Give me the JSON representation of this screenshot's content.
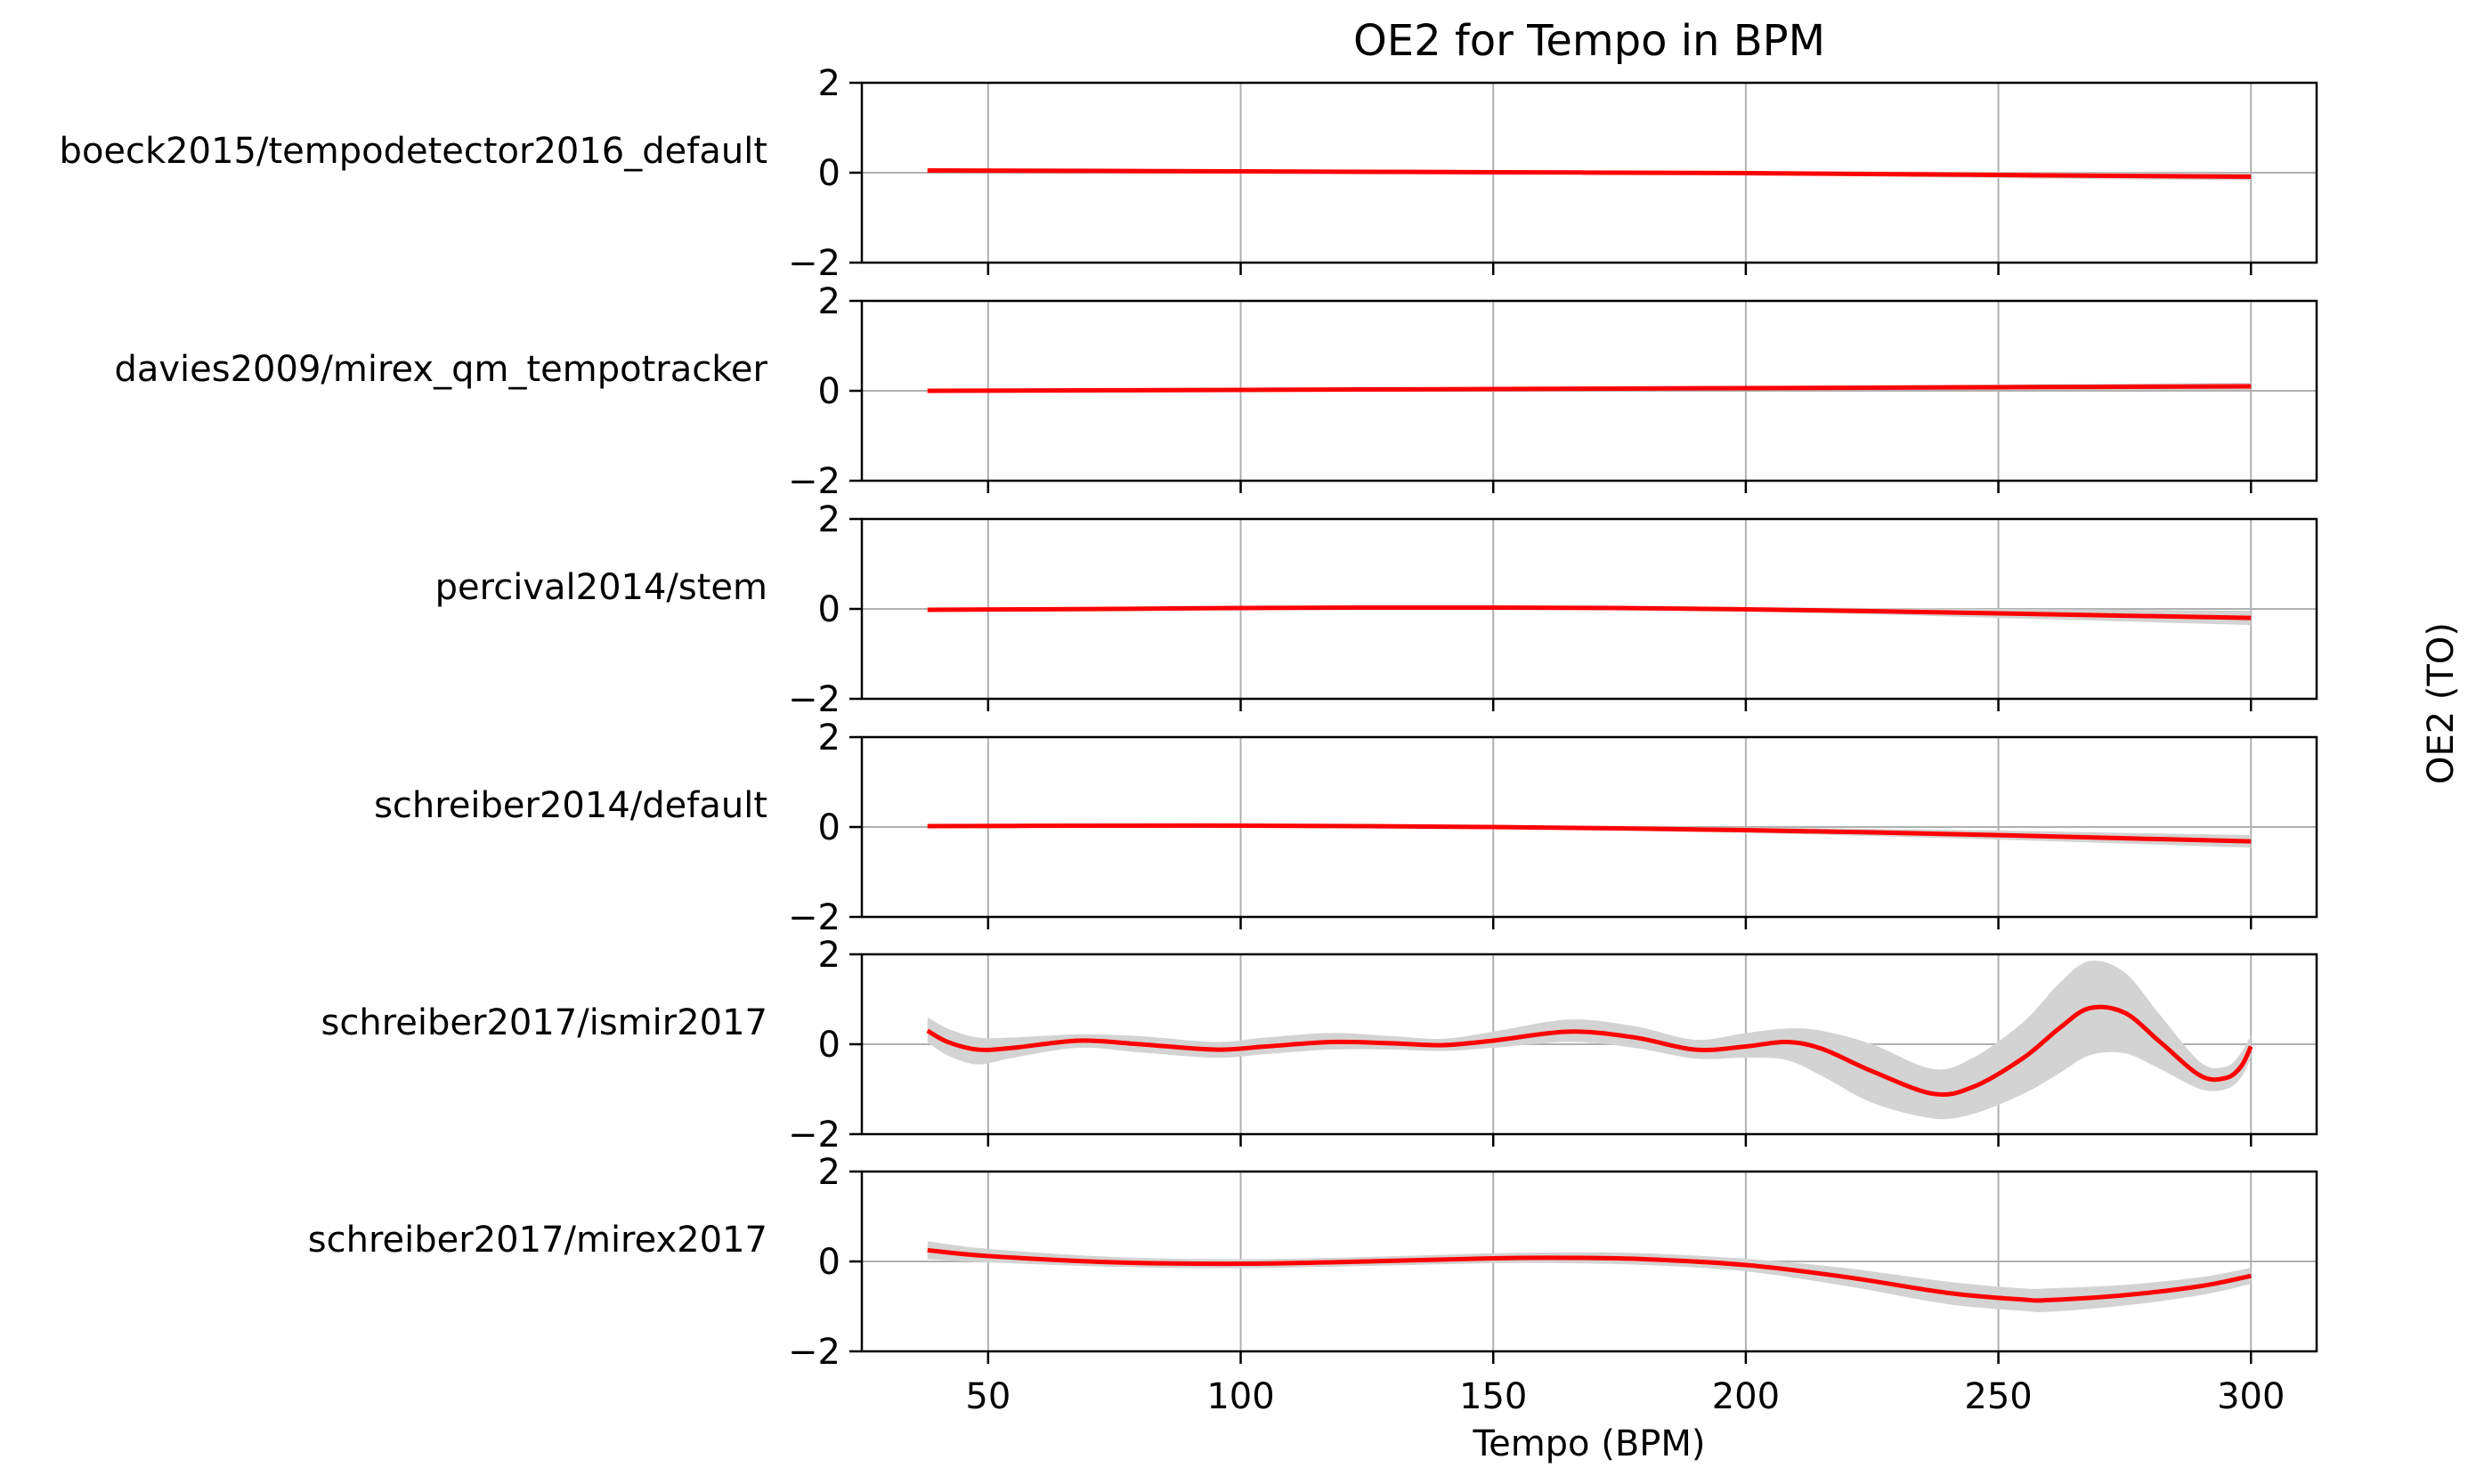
{
  "chart_data": {
    "type": "line",
    "title": "OE2 for Tempo in BPM",
    "xlabel": "Tempo (BPM)",
    "ylabel": "OE2 (TO)",
    "xlim": [
      25,
      313
    ],
    "xticks": [
      50,
      100,
      150,
      200,
      250,
      300
    ],
    "ylim": [
      -2,
      2
    ],
    "yticks": [
      -2,
      0,
      2
    ],
    "grid": true,
    "line_color": "#ff0000",
    "band_color": "#d3d3d3",
    "panels": [
      {
        "name": "boeck2015/tempodetector2016_default",
        "x": [
          38,
          100,
          150,
          200,
          250,
          300
        ],
        "y": [
          0.05,
          0.03,
          0.01,
          -0.01,
          -0.05,
          -0.09
        ],
        "lower": [
          0.01,
          0.0,
          -0.02,
          -0.05,
          -0.12,
          -0.17
        ],
        "upper": [
          0.09,
          0.06,
          0.04,
          0.03,
          0.02,
          -0.01
        ]
      },
      {
        "name": "davies2009/mirex_qm_tempotracker",
        "x": [
          38,
          100,
          150,
          200,
          250,
          300
        ],
        "y": [
          0.0,
          0.02,
          0.04,
          0.06,
          0.08,
          0.1
        ],
        "lower": [
          -0.04,
          -0.01,
          0.01,
          0.02,
          0.02,
          0.02
        ],
        "upper": [
          0.04,
          0.05,
          0.07,
          0.1,
          0.14,
          0.18
        ]
      },
      {
        "name": "percival2014/stem",
        "x": [
          38,
          75,
          100,
          125,
          150,
          175,
          200,
          225,
          250,
          275,
          300
        ],
        "y": [
          -0.02,
          0.0,
          0.02,
          0.03,
          0.03,
          0.02,
          -0.01,
          -0.05,
          -0.1,
          -0.15,
          -0.2
        ],
        "lower": [
          -0.06,
          -0.03,
          -0.01,
          0.0,
          0.0,
          -0.02,
          -0.06,
          -0.12,
          -0.2,
          -0.28,
          -0.36
        ],
        "upper": [
          0.02,
          0.03,
          0.05,
          0.06,
          0.06,
          0.06,
          0.04,
          0.02,
          0.0,
          -0.02,
          -0.04
        ]
      },
      {
        "name": "schreiber2014/default",
        "x": [
          38,
          75,
          100,
          125,
          150,
          175,
          200,
          225,
          250,
          275,
          300
        ],
        "y": [
          0.02,
          0.03,
          0.03,
          0.02,
          0.0,
          -0.03,
          -0.07,
          -0.12,
          -0.18,
          -0.25,
          -0.32
        ],
        "lower": [
          -0.02,
          0.0,
          0.0,
          -0.01,
          -0.04,
          -0.08,
          -0.13,
          -0.2,
          -0.28,
          -0.37,
          -0.46
        ],
        "upper": [
          0.06,
          0.06,
          0.06,
          0.05,
          0.04,
          0.02,
          -0.01,
          -0.04,
          -0.08,
          -0.13,
          -0.18
        ]
      },
      {
        "name": "schreiber2017/ismir2017",
        "x": [
          38,
          42,
          48,
          55,
          68,
          80,
          95,
          105,
          118,
          130,
          140,
          150,
          165,
          178,
          190,
          200,
          208,
          215,
          225,
          237,
          245,
          255,
          262,
          268,
          275,
          282,
          290,
          295,
          298,
          300
        ],
        "y": [
          0.3,
          0.05,
          -0.12,
          -0.08,
          0.08,
          0.0,
          -0.12,
          -0.05,
          0.05,
          0.02,
          -0.02,
          0.08,
          0.28,
          0.15,
          -0.12,
          -0.05,
          0.05,
          -0.1,
          -0.6,
          -1.1,
          -0.95,
          -0.3,
          0.35,
          0.8,
          0.7,
          0.05,
          -0.7,
          -0.75,
          -0.5,
          -0.05
        ],
        "lower": [
          0.05,
          -0.25,
          -0.45,
          -0.3,
          -0.08,
          -0.18,
          -0.3,
          -0.22,
          -0.12,
          -0.12,
          -0.15,
          -0.08,
          0.05,
          -0.08,
          -0.32,
          -0.3,
          -0.35,
          -0.7,
          -1.3,
          -1.65,
          -1.55,
          -1.1,
          -0.65,
          -0.25,
          -0.2,
          -0.55,
          -1.0,
          -1.0,
          -0.75,
          -0.3
        ],
        "upper": [
          0.6,
          0.35,
          0.15,
          0.15,
          0.22,
          0.18,
          0.05,
          0.15,
          0.25,
          0.18,
          0.12,
          0.28,
          0.55,
          0.4,
          0.1,
          0.25,
          0.35,
          0.3,
          0.0,
          -0.55,
          -0.3,
          0.5,
          1.35,
          1.85,
          1.6,
          0.65,
          -0.4,
          -0.5,
          -0.2,
          0.2
        ]
      },
      {
        "name": "schreiber2017/mirex2017",
        "x": [
          38,
          50,
          75,
          100,
          125,
          150,
          165,
          180,
          200,
          220,
          240,
          255,
          260,
          275,
          290,
          300
        ],
        "y": [
          0.25,
          0.12,
          -0.02,
          -0.05,
          0.0,
          0.07,
          0.08,
          0.05,
          -0.08,
          -0.35,
          -0.7,
          -0.85,
          -0.86,
          -0.75,
          -0.55,
          -0.32
        ],
        "lower": [
          0.05,
          -0.02,
          -0.12,
          -0.15,
          -0.1,
          -0.04,
          -0.04,
          -0.08,
          -0.22,
          -0.55,
          -0.95,
          -1.1,
          -1.12,
          -0.98,
          -0.75,
          -0.5
        ],
        "upper": [
          0.45,
          0.28,
          0.1,
          0.05,
          0.1,
          0.18,
          0.2,
          0.18,
          0.06,
          -0.15,
          -0.45,
          -0.6,
          -0.6,
          -0.52,
          -0.35,
          -0.14
        ]
      }
    ]
  }
}
